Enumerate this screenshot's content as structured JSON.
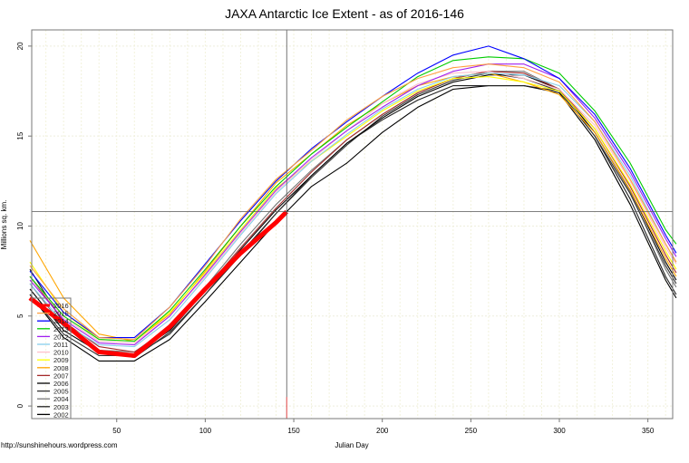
{
  "chart_data": {
    "type": "line",
    "title": "JAXA Antarctic Ice Extent - as of 2016-146",
    "xlabel": "Julian Day",
    "ylabel": "Millions sq. km.",
    "credit": "http://sunshinehours.wordpress.com",
    "xlim": [
      2,
      364
    ],
    "ylim": [
      -0.7,
      20.9
    ],
    "xticks": [
      50,
      100,
      150,
      200,
      250,
      300,
      350
    ],
    "yticks": [
      0,
      5,
      10,
      15,
      20
    ],
    "grid": true,
    "legend_position": "bottom-left",
    "crosshair": {
      "x": 146,
      "y": 10.8
    },
    "x": [
      1,
      20,
      40,
      60,
      80,
      100,
      120,
      140,
      160,
      180,
      200,
      220,
      240,
      260,
      280,
      300,
      320,
      340,
      360,
      366
    ],
    "series": [
      {
        "name": "2016",
        "color": "#ff0000",
        "x": [
          1,
          20,
          40,
          60,
          80,
          100,
          120,
          140,
          146
        ],
        "values": [
          6.0,
          4.6,
          3.0,
          2.8,
          4.4,
          6.5,
          8.5,
          10.2,
          10.8
        ]
      },
      {
        "name": "2015",
        "color": "#ffa040",
        "values": [
          7.8,
          5.4,
          3.8,
          3.7,
          5.5,
          7.8,
          10.4,
          12.6,
          14.2,
          15.9,
          17.2,
          18.2,
          18.8,
          19.0,
          18.8,
          18.0,
          15.8,
          12.6,
          9.0,
          8.0
        ]
      },
      {
        "name": "2014",
        "color": "#0000ff",
        "values": [
          7.5,
          5.2,
          3.8,
          3.8,
          5.5,
          7.9,
          10.3,
          12.5,
          14.3,
          15.8,
          17.2,
          18.5,
          19.5,
          20.0,
          19.3,
          18.2,
          16.2,
          13.2,
          9.5,
          8.5
        ]
      },
      {
        "name": "2013",
        "color": "#00cc00",
        "values": [
          7.2,
          5.0,
          3.7,
          3.6,
          5.3,
          7.6,
          10.0,
          12.2,
          14.0,
          15.5,
          16.9,
          18.3,
          19.2,
          19.4,
          19.3,
          18.5,
          16.4,
          13.5,
          9.8,
          9.0
        ]
      },
      {
        "name": "2012",
        "color": "#a020f0",
        "values": [
          7.0,
          4.8,
          3.5,
          3.4,
          5.0,
          7.3,
          9.7,
          12.0,
          13.8,
          15.3,
          16.6,
          17.8,
          18.6,
          19.0,
          19.0,
          18.2,
          16.0,
          13.0,
          9.3,
          8.3
        ]
      },
      {
        "name": "2011",
        "color": "#87ceeb",
        "values": [
          6.8,
          4.6,
          3.4,
          3.3,
          4.8,
          7.1,
          9.5,
          11.8,
          13.6,
          15.1,
          16.5,
          17.6,
          18.3,
          18.5,
          18.4,
          17.8,
          15.8,
          12.8,
          9.0,
          8.0
        ]
      },
      {
        "name": "2010",
        "color": "#ffc0cb",
        "values": [
          7.2,
          4.9,
          3.6,
          3.5,
          5.0,
          7.2,
          9.6,
          11.9,
          13.7,
          15.3,
          16.8,
          17.9,
          18.5,
          18.6,
          18.2,
          17.6,
          15.6,
          12.5,
          8.8,
          7.9
        ]
      },
      {
        "name": "2009",
        "color": "#ffff00",
        "values": [
          8.0,
          5.2,
          3.7,
          3.6,
          5.2,
          7.4,
          9.8,
          12.1,
          13.6,
          15.0,
          16.4,
          17.5,
          18.2,
          18.3,
          18.0,
          17.5,
          15.4,
          12.3,
          8.6,
          7.6
        ]
      },
      {
        "name": "2008",
        "color": "#ffa500",
        "values": [
          9.2,
          6.0,
          4.0,
          3.6,
          5.1,
          7.5,
          10.0,
          12.4,
          14.0,
          15.6,
          16.8,
          17.8,
          18.3,
          18.5,
          18.0,
          17.3,
          15.2,
          12.0,
          8.2,
          7.2
        ]
      },
      {
        "name": "2007",
        "color": "#a52a2a",
        "values": [
          7.2,
          4.7,
          3.3,
          3.0,
          4.3,
          6.5,
          8.8,
          11.0,
          13.0,
          14.8,
          16.2,
          17.4,
          18.2,
          18.6,
          18.5,
          17.6,
          15.4,
          12.2,
          8.4,
          7.4
        ]
      },
      {
        "name": "2006",
        "color": "#000000",
        "values": [
          6.5,
          4.2,
          3.0,
          2.9,
          4.2,
          6.4,
          8.7,
          10.9,
          12.8,
          14.6,
          16.0,
          17.2,
          18.0,
          18.4,
          18.4,
          17.6,
          15.2,
          12.0,
          8.0,
          7.0
        ]
      },
      {
        "name": "2005",
        "color": "#333333",
        "values": [
          6.2,
          4.0,
          2.8,
          2.8,
          4.0,
          6.2,
          8.5,
          10.7,
          12.7,
          14.5,
          16.1,
          17.3,
          18.1,
          18.5,
          18.2,
          17.5,
          15.0,
          11.8,
          7.8,
          6.8
        ]
      },
      {
        "name": "2004",
        "color": "#777777",
        "values": [
          6.8,
          4.4,
          3.1,
          3.0,
          4.4,
          6.6,
          9.0,
          11.2,
          13.1,
          14.8,
          16.2,
          17.4,
          18.2,
          18.6,
          18.6,
          17.6,
          15.2,
          11.9,
          7.6,
          6.6
        ]
      },
      {
        "name": "2003",
        "color": "#222222",
        "values": [
          7.6,
          4.6,
          3.0,
          2.7,
          4.1,
          6.2,
          8.4,
          10.7,
          12.8,
          14.6,
          15.9,
          17.0,
          17.8,
          17.8,
          17.8,
          17.5,
          15.0,
          11.5,
          7.2,
          6.2
        ]
      },
      {
        "name": "2002",
        "color": "#000000",
        "values": [
          6.2,
          3.8,
          2.5,
          2.5,
          3.7,
          5.8,
          8.0,
          10.2,
          12.2,
          13.5,
          15.2,
          16.6,
          17.6,
          17.8,
          17.8,
          17.4,
          14.8,
          11.2,
          7.0,
          6.0
        ]
      }
    ]
  }
}
